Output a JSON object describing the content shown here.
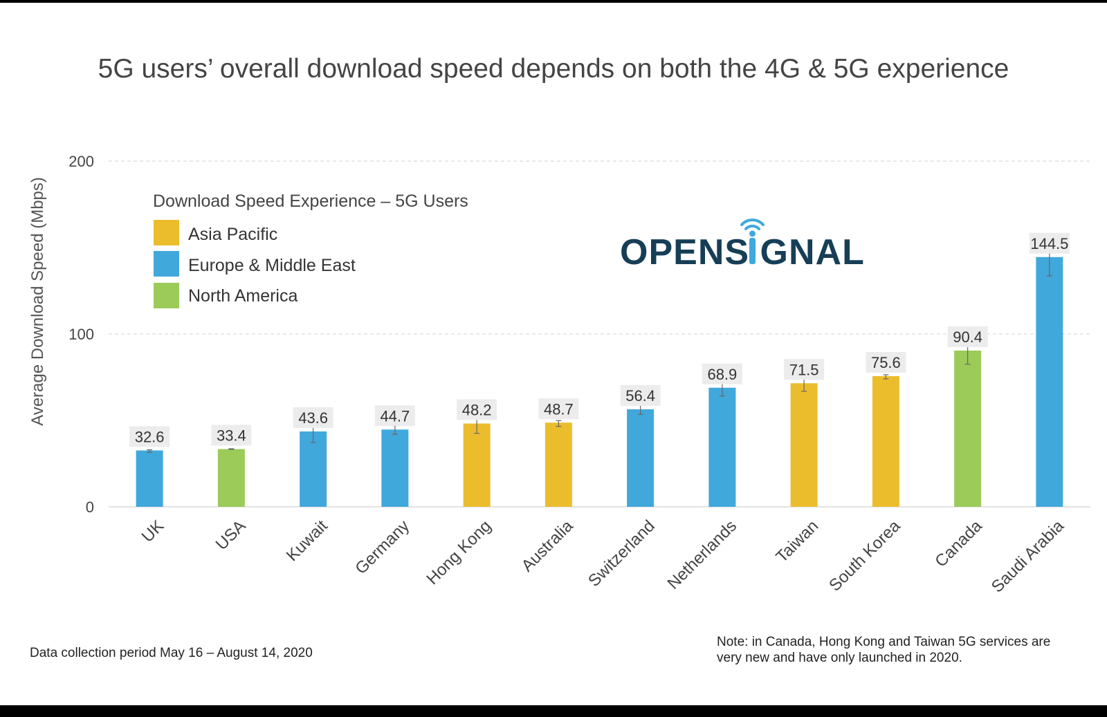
{
  "title": "5G users’ overall download speed depends on both the 4G & 5G experience",
  "colors": {
    "Asia Pacific": "#ebbd2d",
    "Europe & Middle East": "#41a8dc",
    "North America": "#9ccb5a"
  },
  "logo_text": "OPENSIGNAL",
  "footer": {
    "left": "Data collection period May 16 – August 14, 2020",
    "note_line1": "Note: in Canada, Hong Kong and Taiwan 5G services are",
    "note_line2": "very new and have only launched in 2020."
  },
  "chart_data": {
    "type": "bar",
    "title": "5G users’ overall download speed depends on both the 4G & 5G experience",
    "xlabel": "",
    "ylabel": "Average Download Speed (Mbps)",
    "ylim": [
      0,
      200
    ],
    "yticks": [
      "0",
      "100",
      "200"
    ],
    "grid": "horizontal dashed",
    "legend": {
      "title": "Download Speed Experience – 5G Users",
      "placement": "top-left",
      "entries": [
        "Asia Pacific",
        "Europe & Middle East",
        "North America"
      ]
    },
    "categories": [
      "UK",
      "USA",
      "Kuwait",
      "Germany",
      "Hong Kong",
      "Australia",
      "Switzerland",
      "Netherlands",
      "Taiwan",
      "South Korea",
      "Canada",
      "Saudi Arabia"
    ],
    "values": [
      32.6,
      33.4,
      43.6,
      44.7,
      48.2,
      48.7,
      56.4,
      68.9,
      71.5,
      75.6,
      90.4,
      144.5
    ],
    "value_labels": [
      "32.6",
      "33.4",
      "43.6",
      "44.7",
      "48.2",
      "48.7",
      "56.4",
      "68.9",
      "71.5",
      "75.6",
      "90.4",
      "144.5"
    ],
    "regions": [
      "Europe & Middle East",
      "North America",
      "Europe & Middle East",
      "Europe & Middle East",
      "Asia Pacific",
      "Asia Pacific",
      "Europe & Middle East",
      "Europe & Middle East",
      "Asia Pacific",
      "Asia Pacific",
      "North America",
      "Europe & Middle East"
    ],
    "error_low": [
      31.5,
      33.2,
      37.2,
      42.0,
      42.5,
      46.5,
      53.5,
      64.1,
      66.8,
      74.0,
      82.5,
      133.6
    ],
    "error_high": [
      33.0,
      33.6,
      49.2,
      46.9,
      53.2,
      49.9,
      58.8,
      73.2,
      75.9,
      76.4,
      94.5,
      155.2
    ]
  }
}
